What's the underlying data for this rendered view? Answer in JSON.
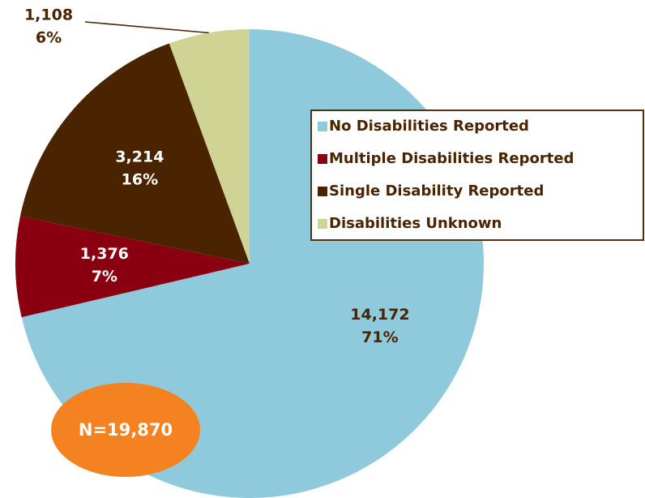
{
  "chart_data": {
    "type": "pie",
    "categories": [
      "No Disabilities Reported",
      "Multiple Disabilities Reported",
      "Single Disability Reported",
      "Disabilities Unknown"
    ],
    "values": [
      14172,
      1376,
      3214,
      1108
    ],
    "value_labels": [
      "14,172",
      "1,376",
      "3,214",
      "1,108"
    ],
    "percentages": [
      71,
      7,
      16,
      6
    ],
    "percentage_labels": [
      "71%",
      "7%",
      "16%",
      "6%"
    ],
    "colors": [
      "#8ecadb",
      "#8b0010",
      "#4a2300",
      "#cfd393"
    ],
    "label_colors": [
      "#4a2300",
      "#ffffff",
      "#ffffff",
      "#4a2300"
    ],
    "annotation": "N=19,870",
    "legend": "right"
  }
}
